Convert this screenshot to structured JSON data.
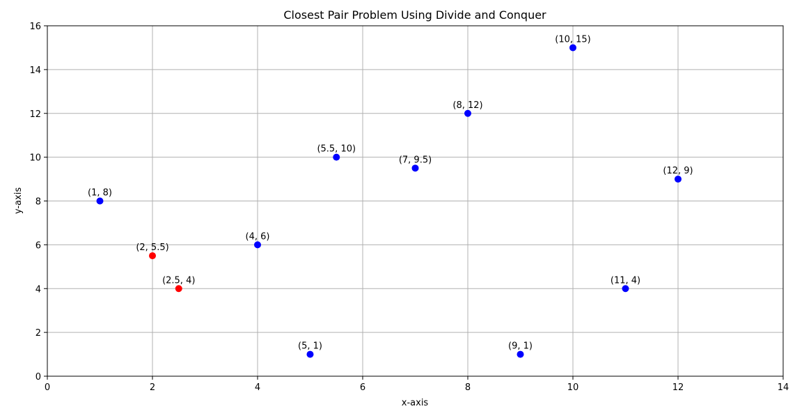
{
  "chart_data": {
    "type": "scatter",
    "title": "Closest Pair Problem Using Divide and Conquer",
    "xlabel": "x-axis",
    "ylabel": "y-axis",
    "xlim": [
      0,
      14
    ],
    "ylim": [
      0,
      16
    ],
    "xticks": [
      0,
      2,
      4,
      6,
      8,
      10,
      12,
      14
    ],
    "yticks": [
      0,
      2,
      4,
      6,
      8,
      10,
      12,
      14,
      16
    ],
    "grid": true,
    "colors": {
      "default": "#0000ff",
      "closest": "#ff0000"
    },
    "points": [
      {
        "x": 1,
        "y": 8,
        "label": "(1, 8)",
        "closest": false
      },
      {
        "x": 2,
        "y": 5.5,
        "label": "(2, 5.5)",
        "closest": true
      },
      {
        "x": 2.5,
        "y": 4,
        "label": "(2.5, 4)",
        "closest": true
      },
      {
        "x": 4,
        "y": 6,
        "label": "(4, 6)",
        "closest": false
      },
      {
        "x": 5,
        "y": 1,
        "label": "(5, 1)",
        "closest": false
      },
      {
        "x": 5.5,
        "y": 10,
        "label": "(5.5, 10)",
        "closest": false
      },
      {
        "x": 7,
        "y": 9.5,
        "label": "(7, 9.5)",
        "closest": false
      },
      {
        "x": 8,
        "y": 12,
        "label": "(8, 12)",
        "closest": false
      },
      {
        "x": 9,
        "y": 1,
        "label": "(9, 1)",
        "closest": false
      },
      {
        "x": 10,
        "y": 15,
        "label": "(10, 15)",
        "closest": false
      },
      {
        "x": 11,
        "y": 4,
        "label": "(11, 4)",
        "closest": false
      },
      {
        "x": 12,
        "y": 9,
        "label": "(12, 9)",
        "closest": false
      }
    ]
  }
}
